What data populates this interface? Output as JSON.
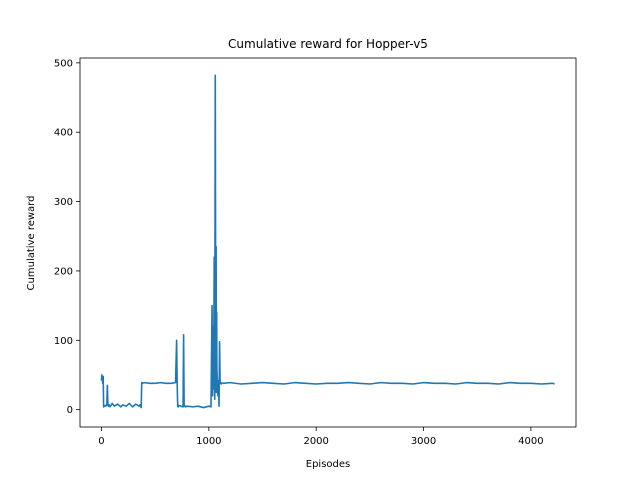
{
  "chart_data": {
    "type": "line",
    "title": "Cumulative reward for Hopper-v5",
    "xlabel": "Episodes",
    "ylabel": "Cumulative reward",
    "xlim": [
      -200,
      4420
    ],
    "ylim": [
      -25,
      507
    ],
    "xticks": [
      0,
      1000,
      2000,
      3000,
      4000
    ],
    "yticks": [
      0,
      100,
      200,
      300,
      400,
      500
    ],
    "grid": false,
    "line_color": "#1f77b4",
    "series": [
      {
        "x": [
          0,
          4,
          8,
          12,
          16,
          20,
          30,
          40,
          50,
          55,
          60,
          65,
          70,
          80,
          100,
          120,
          150,
          180,
          200,
          230,
          260,
          290,
          320,
          350,
          360,
          370,
          375,
          380,
          400,
          450,
          500,
          550,
          600,
          650,
          690,
          700,
          705,
          710,
          715,
          720,
          740,
          760,
          765,
          770,
          775,
          780,
          800,
          850,
          900,
          950,
          1000,
          1020,
          1030,
          1035,
          1040,
          1045,
          1050,
          1055,
          1060,
          1065,
          1068,
          1070,
          1073,
          1075,
          1080,
          1085,
          1090,
          1095,
          1100,
          1105,
          1108,
          1112,
          1115,
          1120,
          1130,
          1200,
          1300,
          1400,
          1500,
          1600,
          1700,
          1800,
          1900,
          2000,
          2100,
          2200,
          2300,
          2400,
          2500,
          2600,
          2700,
          2800,
          2900,
          3000,
          3100,
          3200,
          3300,
          3400,
          3500,
          3600,
          3700,
          3800,
          3900,
          4000,
          4100,
          4200,
          4220
        ],
        "y": [
          42,
          50,
          45,
          38,
          48,
          4,
          6,
          5,
          8,
          35,
          6,
          5,
          7,
          4,
          9,
          5,
          8,
          4,
          7,
          5,
          9,
          4,
          8,
          5,
          7,
          3,
          39,
          38,
          39,
          38,
          38,
          39,
          38,
          38,
          39,
          100,
          38,
          5,
          4,
          6,
          5,
          4,
          108,
          5,
          6,
          4,
          5,
          4,
          5,
          3,
          5,
          4,
          150,
          20,
          120,
          30,
          220,
          15,
          482,
          40,
          235,
          25,
          140,
          60,
          35,
          20,
          42,
          5,
          98,
          40,
          38,
          39,
          37,
          38,
          38,
          39,
          37,
          38,
          39,
          38,
          37,
          39,
          38,
          37,
          38,
          38,
          39,
          38,
          37,
          39,
          38,
          38,
          37,
          39,
          38,
          38,
          37,
          39,
          38,
          38,
          37,
          39,
          38,
          38,
          37,
          38,
          37
        ]
      }
    ]
  }
}
